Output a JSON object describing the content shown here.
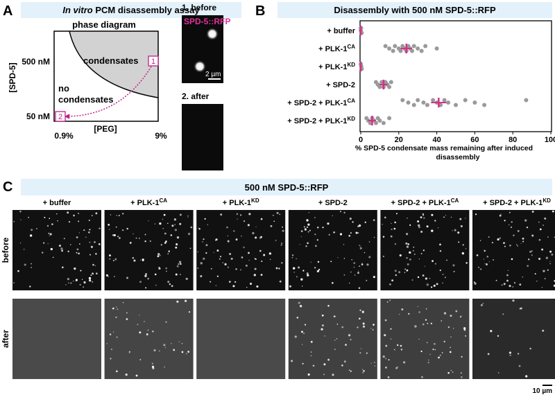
{
  "panel_a": {
    "letter": "A",
    "title": {
      "italic": "In vitro",
      "text": " PCM disassembly assay"
    },
    "diagram_title": "phase diagram",
    "condensates_label": "condensates",
    "no_condensates_label": [
      "no",
      "condensates"
    ],
    "y_label": "[SPD-5]",
    "y_ticks": [
      "500 nM",
      "50 nM"
    ],
    "x_label": "[PEG]",
    "x_ticks": [
      "0.9%",
      "9%"
    ],
    "states": [
      "1",
      "2"
    ],
    "micrographs": [
      {
        "label": "1. before",
        "stain": "SPD-5::RFP",
        "scale": "2 µm"
      },
      {
        "label": "2. after"
      }
    ]
  },
  "panel_b": {
    "letter": "B"
  },
  "chart_data": {
    "type": "scatter",
    "title": "Disassembly with 500 nM SPD-5::RFP",
    "categories": [
      {
        "text": "+ buffer"
      },
      {
        "text": "+ PLK-1",
        "sup": "CA"
      },
      {
        "text": "+ PLK-1",
        "sup": "KD"
      },
      {
        "text": "+ SPD-2"
      },
      {
        "text": "+ SPD-2 + PLK-1",
        "sup": "CA"
      },
      {
        "text": "+ SPD-2 + PLK-1",
        "sup": "KD"
      }
    ],
    "points": [
      [
        0,
        0,
        0.5,
        0.2,
        0,
        0.3
      ],
      [
        13,
        15,
        17,
        18,
        20,
        21,
        22,
        23,
        24,
        25,
        26,
        27,
        28,
        30,
        32,
        34,
        40
      ],
      [
        0,
        0.2,
        0.5,
        0,
        0.3
      ],
      [
        8,
        9,
        10,
        11,
        12,
        12,
        13,
        14,
        15,
        16
      ],
      [
        22,
        25,
        28,
        30,
        33,
        35,
        38,
        40,
        42,
        44,
        46,
        50,
        55,
        60,
        65,
        87
      ],
      [
        3,
        4,
        5,
        6,
        7,
        8,
        9,
        10,
        12,
        15
      ]
    ],
    "means": [
      0,
      24,
      0,
      12,
      41,
      6
    ],
    "errors": [
      0.5,
      3,
      0.5,
      2,
      4,
      2
    ],
    "point_color": "#9a9a9a",
    "mean_color": "#d6308a",
    "xlim": [
      0,
      100
    ],
    "xticks": [
      0,
      20,
      40,
      60,
      80,
      100
    ],
    "xlabel": [
      "% SPD-5 condensate mass remaining after induced",
      "disassembly"
    ]
  },
  "panel_c": {
    "letter": "C",
    "title": "500 nM SPD-5::RFP",
    "columns": [
      {
        "text": "+ buffer"
      },
      {
        "text": "+ PLK-1",
        "sup": "CA"
      },
      {
        "text": "+ PLK-1",
        "sup": "KD"
      },
      {
        "text": "+ SPD-2"
      },
      {
        "text": "+ SPD-2 + PLK-1",
        "sup": "CA"
      },
      {
        "text": "+ SPD-2 + PLK-1",
        "sup": "KD"
      }
    ],
    "rows": [
      "before",
      "after"
    ],
    "scale": "10 µm"
  }
}
